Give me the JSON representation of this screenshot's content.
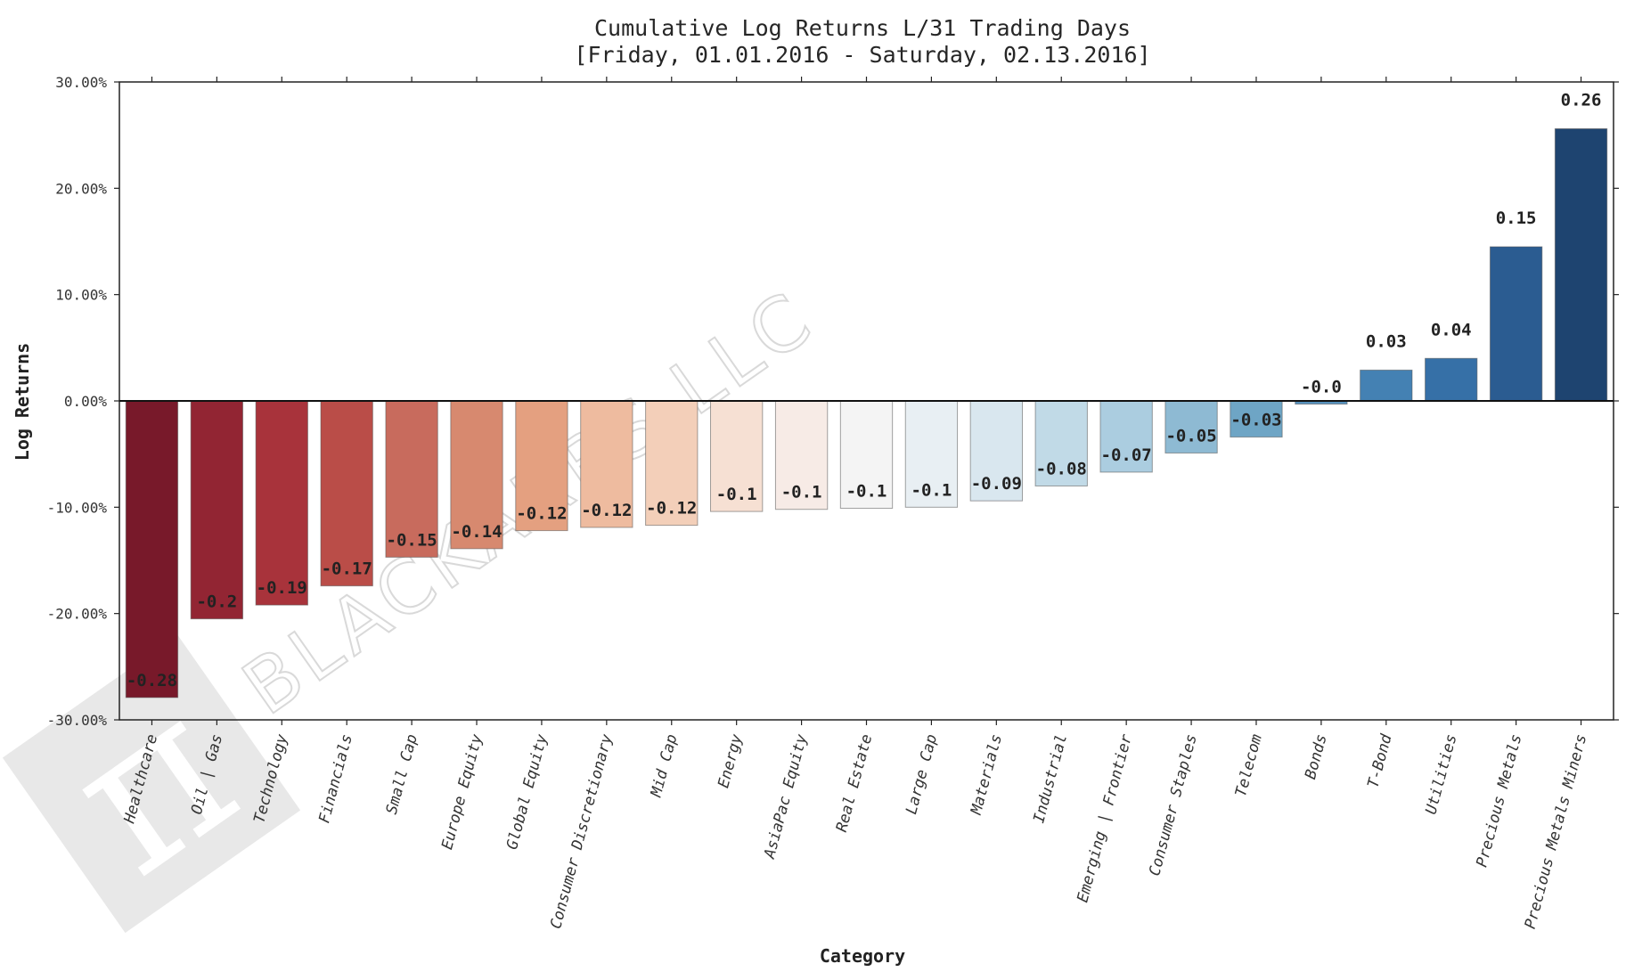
{
  "watermark": {
    "text": "BLACKARBS LLC",
    "logo_glyph": "π"
  },
  "chart_data": {
    "type": "bar",
    "title": "Cumulative Log Returns L/31 Trading Days",
    "subtitle": "[Friday, 01.01.2016 - Saturday, 02.13.2016]",
    "xlabel": "Category",
    "ylabel": "Log Returns",
    "ylim": [
      -0.3,
      0.3
    ],
    "yticks": [
      -0.3,
      -0.2,
      -0.1,
      0.0,
      0.1,
      0.2,
      0.3
    ],
    "ytick_labels": [
      "-30.00%",
      "-20.00%",
      "-10.00%",
      "0.00%",
      "10.00%",
      "20.00%",
      "30.00%"
    ],
    "categories": [
      "Healthcare",
      "Oil | Gas",
      "Technology",
      "Financials",
      "Small Cap",
      "Europe Equity",
      "Global Equity",
      "Consumer Discretionary",
      "Mid Cap",
      "Energy",
      "AsiaPac Equity",
      "Real Estate",
      "Large Cap",
      "Materials",
      "Industrial",
      "Emerging | Frontier",
      "Consumer Staples",
      "Telecom",
      "Bonds",
      "T-Bond",
      "Utilities",
      "Precious Metals",
      "Precious Metals Miners"
    ],
    "values": [
      -0.279,
      -0.205,
      -0.192,
      -0.174,
      -0.147,
      -0.139,
      -0.122,
      -0.119,
      -0.117,
      -0.104,
      -0.102,
      -0.101,
      -0.1,
      -0.094,
      -0.08,
      -0.067,
      -0.049,
      -0.034,
      -0.003,
      0.029,
      0.04,
      0.145,
      0.256
    ],
    "labels": [
      "-0.28",
      "-0.2",
      "-0.19",
      "-0.17",
      "-0.15",
      "-0.14",
      "-0.12",
      "-0.12",
      "-0.12",
      "-0.1",
      "-0.1",
      "-0.1",
      "-0.1",
      "-0.09",
      "-0.08",
      "-0.07",
      "-0.05",
      "-0.03",
      "-0.0",
      "0.03",
      "0.04",
      "0.15",
      "0.26"
    ],
    "colors": [
      "#78192a",
      "#922533",
      "#a8333b",
      "#ba4d48",
      "#c86b5d",
      "#d7896f",
      "#e4a080",
      "#eebb9f",
      "#f3cfb9",
      "#f6e0d3",
      "#f7ebe6",
      "#f4f4f4",
      "#e8eff3",
      "#d9e7ef",
      "#c1dae7",
      "#abcde0",
      "#8ebad3",
      "#6ea5c5",
      "#5792be",
      "#4481b3",
      "#3670a7",
      "#2b5c91",
      "#1e4470"
    ],
    "grid": false,
    "legend": "none"
  }
}
